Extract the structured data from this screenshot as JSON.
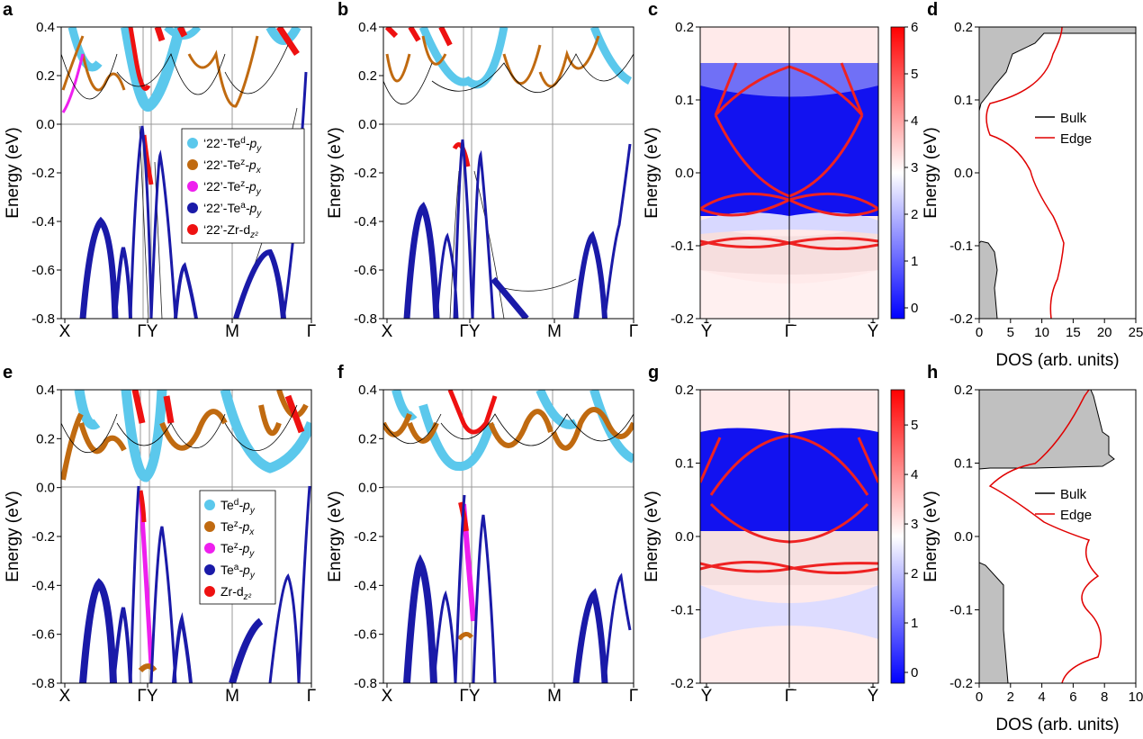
{
  "panel_labels": [
    "a",
    "b",
    "c",
    "d",
    "e",
    "f",
    "g",
    "h"
  ],
  "kpath": [
    "X",
    "ΓY",
    "M",
    "Γ"
  ],
  "edge_path": [
    "Ȳ",
    "Γ̄",
    "Ȳ"
  ],
  "band_yticks": [
    "0.4",
    "0.2",
    "0.0",
    "-0.2",
    "-0.4",
    "-0.6",
    "-0.8"
  ],
  "surf_yticks": [
    "0.2",
    "0.1",
    "0.0",
    "-0.1",
    "-0.2"
  ],
  "y_label": "Energy (eV)",
  "dos_label": "DOS (arb. units)",
  "legend_top": [
    {
      "pre": "‘22’-Te",
      "sup": "d",
      "post": "-p",
      "sub": "y",
      "color": "#5bc8ec"
    },
    {
      "pre": "‘22’-Te",
      "sup": "z",
      "post": "-p",
      "sub": "x",
      "color": "#c06a10"
    },
    {
      "pre": "‘22’-Te",
      "sup": "z",
      "post": "-p",
      "sub": "y",
      "color": "#ee1fee"
    },
    {
      "pre": "‘22’-Te",
      "sup": "a",
      "post": "-p",
      "sub": "y",
      "color": "#1a1aa8"
    },
    {
      "pre": "‘22’-Zr-d",
      "sup": "",
      "post": "",
      "sub": "z²",
      "color": "#ee1111"
    }
  ],
  "legend_bottom": [
    {
      "pre": "Te",
      "sup": "d",
      "post": "-p",
      "sub": "y",
      "color": "#5bc8ec"
    },
    {
      "pre": "Te",
      "sup": "z",
      "post": "-p",
      "sub": "x",
      "color": "#c06a10"
    },
    {
      "pre": "Te",
      "sup": "z",
      "post": "-p",
      "sub": "y",
      "color": "#ee1fee"
    },
    {
      "pre": "Te",
      "sup": "a",
      "post": "-p",
      "sub": "y",
      "color": "#1a1aa8"
    },
    {
      "pre": "Zr-d",
      "sup": "",
      "post": "",
      "sub": "z²",
      "color": "#ee1111"
    }
  ],
  "dos_legend": {
    "bulk": "Bulk",
    "edge": "Edge"
  },
  "colorbar_c": [
    "6",
    "5",
    "4",
    "3",
    "2",
    "1",
    "0"
  ],
  "colorbar_g": [
    "5",
    "4",
    "3",
    "2",
    "1",
    "0"
  ],
  "dos_xticks_d": [
    "0",
    "5",
    "10",
    "15",
    "20",
    "25"
  ],
  "dos_xticks_h": [
    "0",
    "2",
    "4",
    "6",
    "8",
    "10"
  ],
  "colors": {
    "bulk_fill": "#c0c0c0",
    "edge_line": "#e00000",
    "blue": "#1010f0",
    "red": "#f01010"
  }
}
